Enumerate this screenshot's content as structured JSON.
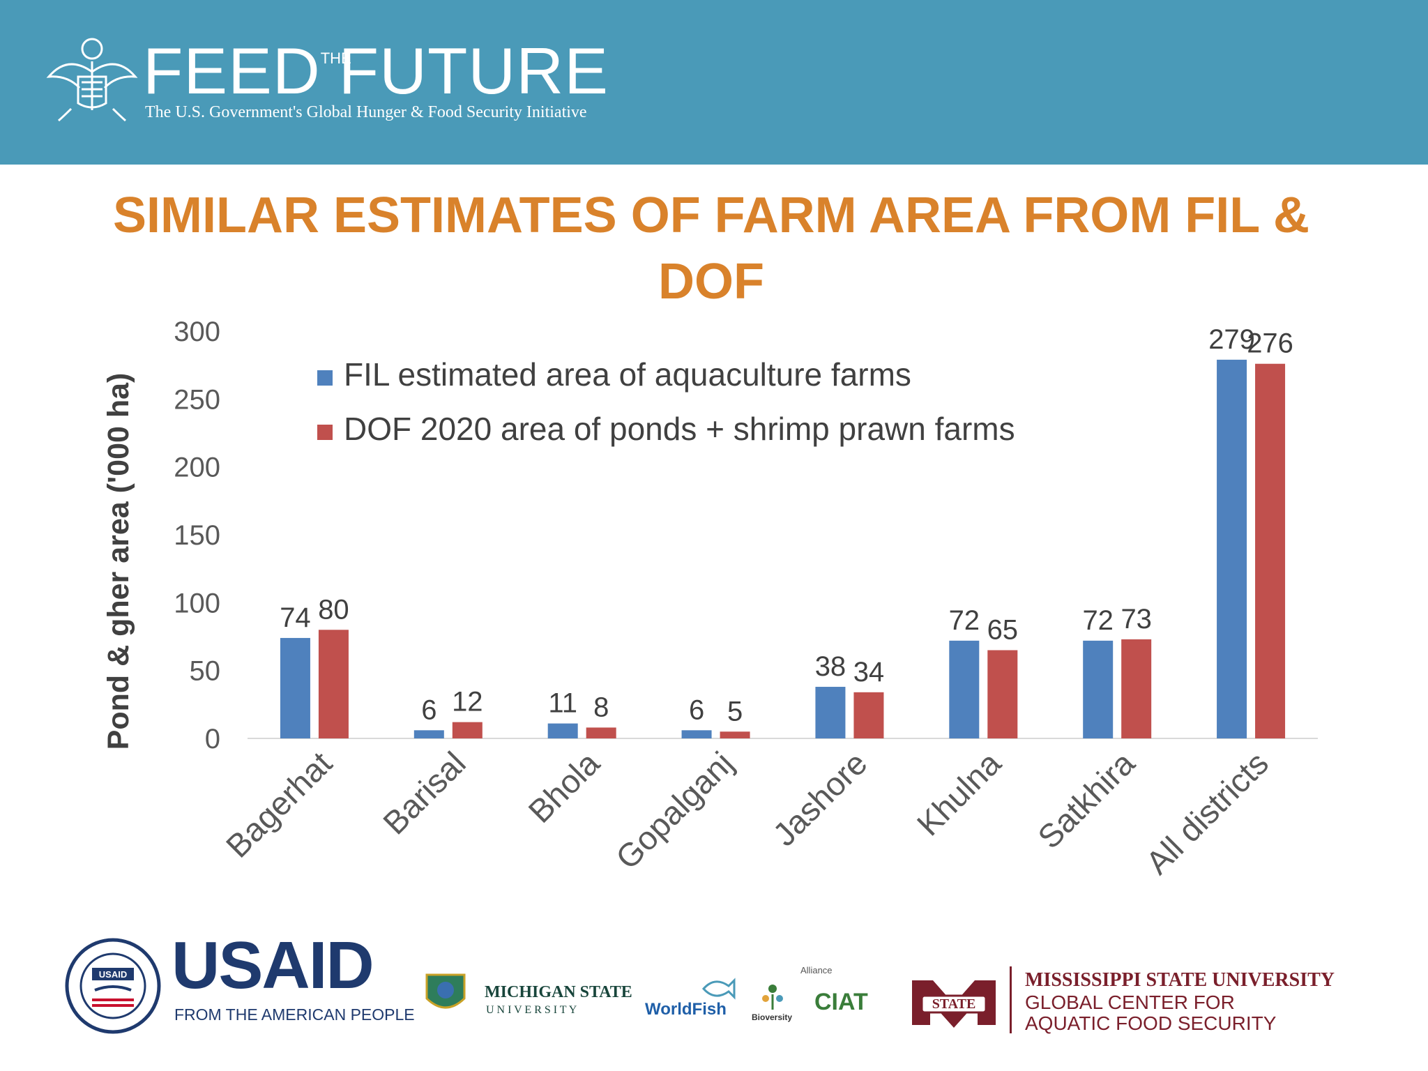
{
  "header": {
    "brand_left": "FEED",
    "brand_the": "THE",
    "brand_right": "FUTURE",
    "tagline": "The U.S. Government's Global Hunger & Food Security Initiative",
    "background_color": "#4a9ab8"
  },
  "title": "SIMILAR ESTIMATES OF FARM AREA FROM FIL & DOF",
  "chart_data": {
    "type": "bar",
    "title": "SIMILAR ESTIMATES OF FARM AREA FROM FIL & DOF",
    "xlabel": "",
    "ylabel": "Pond & gher area ('000 ha)",
    "ylim": [
      0,
      300
    ],
    "yticks": [
      0,
      50,
      100,
      150,
      200,
      250,
      300
    ],
    "grid": false,
    "legend_position": "top-center",
    "categories": [
      "Bagerhat",
      "Barisal",
      "Bhola",
      "Gopalganj",
      "Jashore",
      "Khulna",
      "Satkhira",
      "All districts"
    ],
    "series": [
      {
        "name": "FIL estimated area of aquaculture farms",
        "color": "#4f81bd",
        "values": [
          74,
          6,
          11,
          6,
          38,
          72,
          72,
          279
        ]
      },
      {
        "name": "DOF 2020 area of ponds + shrimp prawn farms",
        "color": "#c0504d",
        "values": [
          80,
          12,
          8,
          5,
          34,
          65,
          73,
          276
        ]
      }
    ]
  },
  "logos": {
    "usaid_seal_text": "USAID",
    "usaid_word": "USAID",
    "usaid_sub": "FROM THE AMERICAN PEOPLE",
    "msu_michigan_line1": "MICHIGAN STATE",
    "msu_michigan_line2": "U N I V E R S I T Y",
    "worldfish": "WorldFish",
    "alliance": "Alliance",
    "bioversity": "Bioversity",
    "ciat": "CIAT",
    "mississippi_badge": "STATE",
    "mississippi_line1": "MISSISSIPPI STATE UNIVERSITY",
    "mississippi_line2": "GLOBAL CENTER FOR",
    "mississippi_line3": "AQUATIC FOOD SECURITY",
    "maroon_color": "#7a1f2b",
    "usaid_blue": "#1f3a6e",
    "usaid_red": "#c8102e"
  }
}
